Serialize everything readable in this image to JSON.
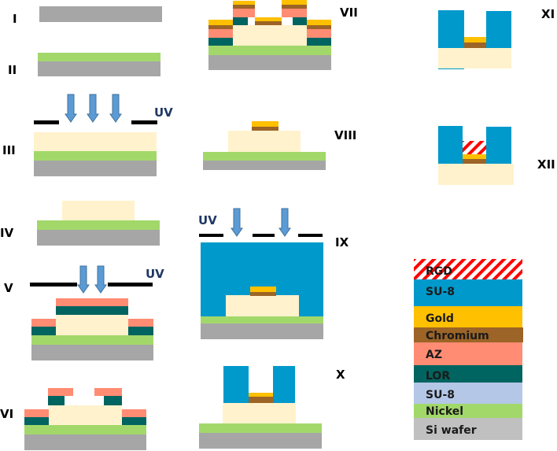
{
  "steps": {
    "s1": "I",
    "s2": "II",
    "s3": "III",
    "s4": "IV",
    "s5": "V",
    "s6": "VI",
    "s7": "VII",
    "s8": "VIII",
    "s9": "IX",
    "s10": "X",
    "s11": "XI",
    "s12": "XII"
  },
  "uv_label": "UV",
  "legend": [
    {
      "label": "RGD",
      "material": "rgd"
    },
    {
      "label": "SU-8",
      "material": "su8_exposed"
    },
    {
      "label": "Gold",
      "material": "gold"
    },
    {
      "label": "Chromium",
      "material": "chromium"
    },
    {
      "label": "AZ",
      "material": "az"
    },
    {
      "label": "LOR",
      "material": "lor"
    },
    {
      "label": "SU-8",
      "material": "su8_legend"
    },
    {
      "label": "Nickel",
      "material": "nickel"
    },
    {
      "label": "Si wafer",
      "material": "si_legend"
    }
  ],
  "colors": {
    "si": "#a6a6a6",
    "si_legend": "#c0c0c0",
    "nickel": "#a2d86a",
    "su8": "#fff2cc",
    "su8_legend": "#b4c7e7",
    "su8_exposed": "#0099cc",
    "gold": "#ffc000",
    "chromium": "#9c6426",
    "az": "#ff8c73",
    "lor": "#006460",
    "rgd_stripe": "#ff0000",
    "arrow_fill": "#5b9bd5",
    "arrow_stroke": "#41719c",
    "mask": "#000000",
    "uv_text": "#1f3864"
  }
}
